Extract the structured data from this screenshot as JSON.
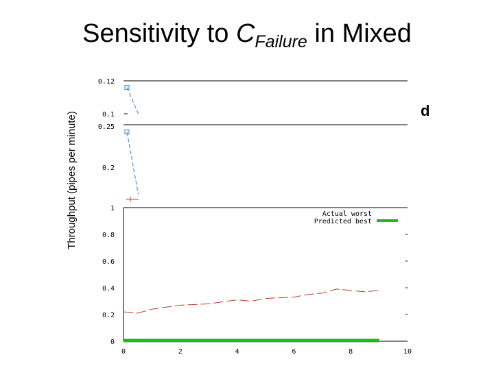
{
  "title": {
    "prefix": "Sensitivity to ",
    "symbol": "C",
    "subscript": "Failure",
    "suffix": " in Mixed"
  },
  "y_axis_label": "Throughput (pipes per minute)",
  "colors": {
    "predicted_best": "#22b822",
    "actual_worst": "#c0392b",
    "top_series": "#3a7fc1",
    "title_fragment": "#ff3b00"
  },
  "chart_data": [
    {
      "type": "line",
      "panel": "top",
      "ylim": [
        0.1,
        0.12
      ],
      "y_ticks": [
        "0.12",
        "0.1"
      ],
      "series": [
        {
          "x": [
            0,
            0.4
          ],
          "y": [
            0.116,
            0.1
          ]
        }
      ],
      "partial_text": "d"
    },
    {
      "type": "line",
      "panel": "middle",
      "ylim": [
        0.15,
        0.25
      ],
      "y_ticks": [
        "0.25",
        "0.2"
      ],
      "series": [
        {
          "x": [
            0,
            0.4
          ],
          "y": [
            0.242,
            0.158
          ]
        }
      ]
    },
    {
      "type": "line",
      "panel": "bottom",
      "xlim": [
        0,
        10
      ],
      "ylim": [
        0,
        1
      ],
      "x_ticks": [
        "0",
        "2",
        "4",
        "6",
        "8",
        "10"
      ],
      "y_ticks": [
        "1",
        "0.8",
        "0.6",
        "0.4",
        "0.2",
        "0"
      ],
      "legend": [
        "Actual worst",
        "Predicted best"
      ],
      "series": [
        {
          "name": "Actual worst",
          "x": [
            0,
            0.5,
            1,
            2,
            3,
            4,
            4.5,
            5,
            6,
            6.5,
            7,
            7.5,
            8,
            8.5,
            9
          ],
          "y": [
            0.22,
            0.21,
            0.24,
            0.27,
            0.28,
            0.31,
            0.3,
            0.32,
            0.33,
            0.35,
            0.36,
            0.39,
            0.38,
            0.37,
            0.38
          ]
        },
        {
          "name": "Predicted best",
          "x": [
            0,
            9
          ],
          "y": [
            0,
            0
          ]
        }
      ]
    }
  ]
}
